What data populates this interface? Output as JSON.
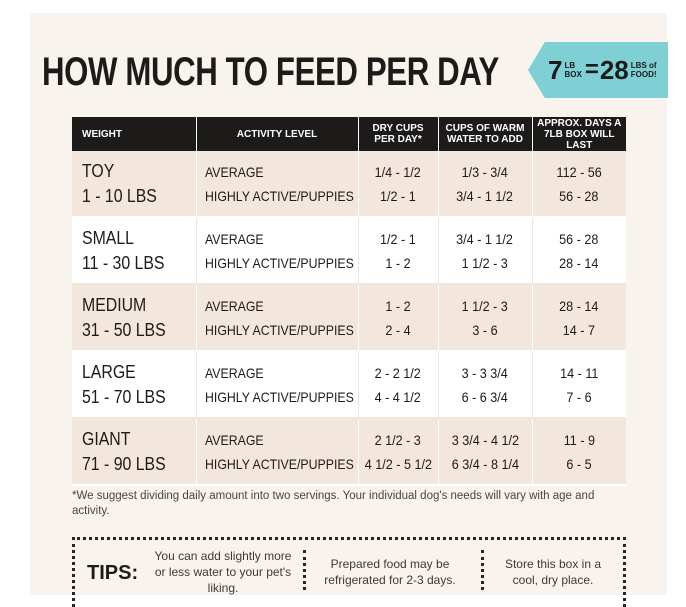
{
  "title": "HOW MUCH TO FEED PER DAY",
  "banner": {
    "left_num": "7",
    "left_top": "LB",
    "left_bottom": "BOX",
    "eq": "=",
    "right_num": "28",
    "right_top": "LBS of",
    "right_bottom": "FOOD!"
  },
  "table": {
    "headers": [
      "WEIGHT",
      "ACTIVITY LEVEL",
      "DRY CUPS PER DAY*",
      "CUPS OF WARM WATER TO ADD",
      "APPROX. DAYS A 7LB BOX WILL LAST"
    ],
    "rows": [
      {
        "size": "TOY",
        "range": "1 - 10 LBS",
        "act1": "AVERAGE",
        "act2": "HIGHLY ACTIVE/PUPPIES",
        "dry1": "1/4 - 1/2",
        "dry2": "1/2 - 1",
        "water1": "1/3 - 3/4",
        "water2": "3/4 - 1 1/2",
        "days1": "112 - 56",
        "days2": "56 - 28"
      },
      {
        "size": "SMALL",
        "range": "11 - 30 LBS",
        "act1": "AVERAGE",
        "act2": "HIGHLY ACTIVE/PUPPIES",
        "dry1": "1/2 - 1",
        "dry2": "1 - 2",
        "water1": "3/4 - 1 1/2",
        "water2": "1 1/2 - 3",
        "days1": "56 - 28",
        "days2": "28 - 14"
      },
      {
        "size": "MEDIUM",
        "range": "31 - 50 LBS",
        "act1": "AVERAGE",
        "act2": "HIGHLY ACTIVE/PUPPIES",
        "dry1": "1 - 2",
        "dry2": "2 - 4",
        "water1": "1 1/2 - 3",
        "water2": "3 - 6",
        "days1": "28 - 14",
        "days2": "14 - 7"
      },
      {
        "size": "LARGE",
        "range": "51 - 70 LBS",
        "act1": "AVERAGE",
        "act2": "HIGHLY ACTIVE/PUPPIES",
        "dry1": "2 - 2 1/2",
        "dry2": "4 - 4 1/2",
        "water1": "3 - 3 3/4",
        "water2": "6 - 6 3/4",
        "days1": "14 - 11",
        "days2": "7 - 6"
      },
      {
        "size": "GIANT",
        "range": "71 - 90 LBS",
        "act1": "AVERAGE",
        "act2": "HIGHLY ACTIVE/PUPPIES",
        "dry1": "2 1/2 - 3",
        "dry2": "4 1/2 - 5 1/2",
        "water1": "3 3/4 - 4 1/2",
        "water2": "6 3/4 - 8 1/4",
        "days1": "11 - 9",
        "days2": "6 - 5"
      }
    ]
  },
  "footnote": "*We suggest dividing daily amount into two servings. Your individual dog's needs will vary with age and activity.",
  "tips": {
    "label": "TIPS:",
    "tip1": "You can add slightly more or less water to your pet's liking.",
    "tip2": "Prepared food may be refrigerated for 2-3 days.",
    "tip3": "Store this box in a cool, dry place."
  },
  "colors": {
    "header_bg": "#1d1b1a",
    "shade_row": "#f3e6dc",
    "banner": "#7fd0d4",
    "card_bg": "#f8f3ec"
  }
}
